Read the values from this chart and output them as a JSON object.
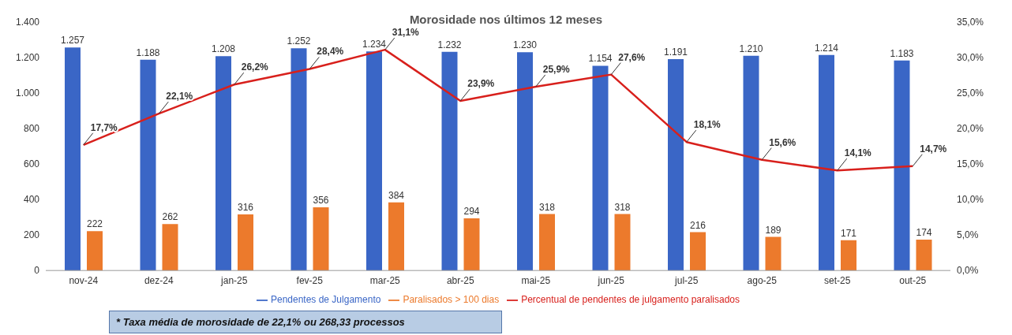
{
  "chart_data": {
    "type": "bar",
    "title": "Morosidade nos últimos 12 meses",
    "categories": [
      "nov-24",
      "dez-24",
      "jan-25",
      "fev-25",
      "mar-25",
      "abr-25",
      "mai-25",
      "jun-25",
      "jul-25",
      "ago-25",
      "set-25",
      "out-25"
    ],
    "series": [
      {
        "name": "Pendentes de Julgamento",
        "color": "#3a66c6",
        "values": [
          1257,
          1188,
          1208,
          1252,
          1234,
          1232,
          1230,
          1154,
          1191,
          1210,
          1214,
          1183
        ],
        "value_labels": [
          "1.257",
          "1.188",
          "1.208",
          "1.252",
          "1.234",
          "1.232",
          "1.230",
          "1.154",
          "1.191",
          "1.210",
          "1.214",
          "1.183"
        ]
      },
      {
        "name": "Paralisados > 100 dias",
        "color": "#ec7a2c",
        "values": [
          222,
          262,
          316,
          356,
          384,
          294,
          318,
          318,
          216,
          189,
          171,
          174
        ],
        "value_labels": [
          "222",
          "262",
          "316",
          "356",
          "384",
          "294",
          "318",
          "318",
          "216",
          "189",
          "171",
          "174"
        ]
      },
      {
        "name": "Percentual de pendentes de julgamento paralisados",
        "type": "line",
        "axis": "y2",
        "color": "#d8201c",
        "values": [
          17.7,
          22.1,
          26.2,
          28.4,
          31.1,
          23.9,
          25.9,
          27.6,
          18.1,
          15.6,
          14.1,
          14.7
        ],
        "value_labels": [
          "17,7%",
          "22,1%",
          "26,2%",
          "28,4%",
          "31,1%",
          "23,9%",
          "25,9%",
          "27,6%",
          "18,1%",
          "15,6%",
          "14,1%",
          "14,7%"
        ]
      }
    ],
    "ylim": [
      0,
      1400
    ],
    "yticks": [
      0,
      {
        "value": 200,
        "label": "200"
      },
      {
        "value": 400,
        "label": "400"
      },
      {
        "value": 600,
        "label": "600"
      },
      {
        "value": 800,
        "label": "800"
      },
      {
        "value": 1000,
        "label": "1.000"
      },
      {
        "value": 1200,
        "label": "1.200"
      },
      {
        "value": 1400,
        "label": "1.400"
      }
    ],
    "y2lim": [
      0,
      35
    ],
    "y2ticks": [
      {
        "value": 0,
        "label": "0,0%"
      },
      {
        "value": 5,
        "label": "5,0%"
      },
      {
        "value": 10,
        "label": "10,0%"
      },
      {
        "value": 15,
        "label": "15,0%"
      },
      {
        "value": 20,
        "label": "20,0%"
      },
      {
        "value": 25,
        "label": "25,0%"
      },
      {
        "value": 30,
        "label": "30,0%"
      },
      {
        "value": 35,
        "label": "35,0%"
      }
    ],
    "legend": "bottom",
    "marker": "none",
    "annotations": [
      "* Taxa média de morosidade de 22,1% ou 268,33 processos"
    ]
  }
}
